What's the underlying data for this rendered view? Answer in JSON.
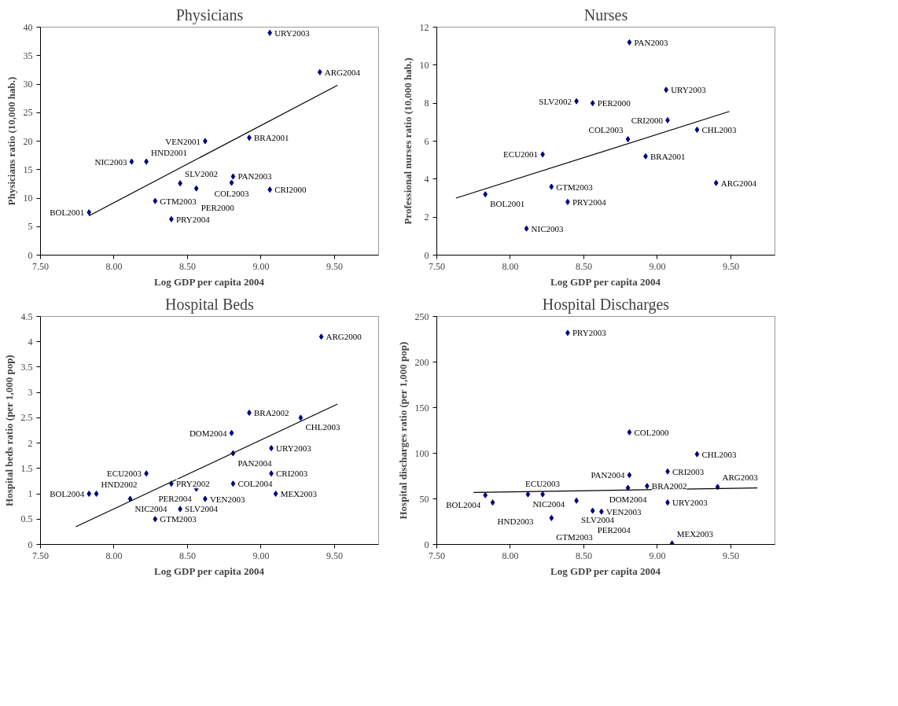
{
  "chart_data": [
    {
      "type": "scatter",
      "title": "Physicians",
      "xlabel": "Log GDP per capita 2004",
      "ylabel": "Physicians ratio (10,000 hab.)",
      "xlim": [
        7.5,
        9.8
      ],
      "xticks": [
        {
          "value": 7.5,
          "label": "7.50"
        },
        {
          "value": 8.0,
          "label": "8.00"
        },
        {
          "value": 8.5,
          "label": "8.50"
        },
        {
          "value": 9.0,
          "label": "9.00"
        },
        {
          "value": 9.5,
          "label": "9.50"
        }
      ],
      "ylim": [
        0,
        40
      ],
      "yticks": [
        0,
        5,
        10,
        15,
        20,
        25,
        30,
        35,
        40
      ],
      "series": [
        {
          "marker": "diamond",
          "color": "#000080",
          "x": [
            9.06,
            9.4,
            8.62,
            8.92,
            8.12,
            8.22,
            8.81,
            8.45,
            8.8,
            8.56,
            9.06,
            8.28,
            7.83,
            8.39
          ],
          "values": [
            39.0,
            32.1,
            20.0,
            20.6,
            16.4,
            16.4,
            13.8,
            12.6,
            12.7,
            11.7,
            11.5,
            9.5,
            7.5,
            6.3
          ]
        },
        {
          "type": "line",
          "color": "#000000",
          "x": [
            7.83,
            9.52
          ],
          "values": [
            6.9,
            29.8
          ]
        }
      ],
      "annotations": [
        {
          "text": "URY2003",
          "x": 9.06,
          "y": 39.0
        },
        {
          "text": "ARG2004",
          "x": 9.4,
          "y": 32.1
        },
        {
          "text": "VEN2001",
          "x": 8.62,
          "y": 20.0
        },
        {
          "text": "BRA2001",
          "x": 8.92,
          "y": 20.6
        },
        {
          "text": "NIC2003",
          "x": 8.12,
          "y": 16.4
        },
        {
          "text": "HND2001",
          "x": 8.22,
          "y": 16.4
        },
        {
          "text": "PAN2003",
          "x": 8.81,
          "y": 13.8
        },
        {
          "text": "SLV2002",
          "x": 8.45,
          "y": 12.6
        },
        {
          "text": "COL2003",
          "x": 8.8,
          "y": 12.7
        },
        {
          "text": "PER2000",
          "x": 8.56,
          "y": 11.7
        },
        {
          "text": "CRI2000",
          "x": 9.06,
          "y": 11.5
        },
        {
          "text": "GTM2003",
          "x": 8.28,
          "y": 9.5
        },
        {
          "text": "BOL2001",
          "x": 7.83,
          "y": 7.5
        },
        {
          "text": "PRY2004",
          "x": 8.39,
          "y": 6.3
        }
      ]
    },
    {
      "type": "scatter",
      "title": "Nurses",
      "xlabel": "Log GDP per capita 2004",
      "ylabel": "Professional nurses ratio (10,000 hab.)",
      "xlim": [
        7.5,
        9.8
      ],
      "xticks": [
        {
          "value": 7.5,
          "label": "7.50"
        },
        {
          "value": 8.0,
          "label": "8.00"
        },
        {
          "value": 8.5,
          "label": "8.50"
        },
        {
          "value": 9.0,
          "label": "9.00"
        },
        {
          "value": 9.5,
          "label": "9.50"
        }
      ],
      "ylim": [
        0,
        12
      ],
      "yticks": [
        0,
        2,
        4,
        6,
        8,
        10,
        12
      ],
      "series": [
        {
          "marker": "diamond",
          "color": "#000080",
          "x": [
            8.81,
            9.06,
            8.45,
            8.56,
            9.07,
            9.27,
            8.8,
            8.22,
            8.92,
            9.4,
            8.28,
            7.83,
            8.39,
            8.11
          ],
          "values": [
            11.2,
            8.7,
            8.1,
            8.0,
            7.1,
            6.6,
            6.1,
            5.3,
            5.2,
            3.8,
            3.6,
            3.2,
            2.8,
            1.4
          ]
        },
        {
          "type": "line",
          "color": "#000000",
          "x": [
            7.63,
            9.49
          ],
          "values": [
            3.0,
            7.56
          ]
        }
      ],
      "annotations": [
        {
          "text": "PAN2003",
          "x": 8.81,
          "y": 11.2
        },
        {
          "text": "URY2003",
          "x": 9.06,
          "y": 8.7
        },
        {
          "text": "SLV2002",
          "x": 8.45,
          "y": 8.1
        },
        {
          "text": "PER2000",
          "x": 8.56,
          "y": 8.0
        },
        {
          "text": "CRI2000",
          "x": 9.07,
          "y": 7.1
        },
        {
          "text": "CHL2003",
          "x": 9.27,
          "y": 6.6
        },
        {
          "text": "COL2003",
          "x": 8.8,
          "y": 6.1
        },
        {
          "text": "ECU2001",
          "x": 8.22,
          "y": 5.3
        },
        {
          "text": "BRA2001",
          "x": 8.92,
          "y": 5.2
        },
        {
          "text": "ARG2004",
          "x": 9.4,
          "y": 3.8
        },
        {
          "text": "GTM2003",
          "x": 8.28,
          "y": 3.6
        },
        {
          "text": "BOL2001",
          "x": 7.83,
          "y": 3.2
        },
        {
          "text": "PRY2004",
          "x": 8.39,
          "y": 2.8
        },
        {
          "text": "NIC2003",
          "x": 8.11,
          "y": 1.4
        }
      ]
    },
    {
      "type": "scatter",
      "title": "Hospital Beds",
      "xlabel": "Log GDP per capita 2004",
      "ylabel": "Hospital beds ratio (per 1,000 pop)",
      "xlim": [
        7.5,
        9.8
      ],
      "xticks": [
        {
          "value": 7.5,
          "label": "7.50"
        },
        {
          "value": 8.0,
          "label": "8.00"
        },
        {
          "value": 8.5,
          "label": "8.50"
        },
        {
          "value": 9.0,
          "label": "9.00"
        },
        {
          "value": 9.5,
          "label": "9.50"
        }
      ],
      "ylim": [
        0,
        4.5
      ],
      "yticks": [
        0,
        0.5,
        1,
        1.5,
        2,
        2.5,
        3,
        3.5,
        4,
        4.5
      ],
      "series": [
        {
          "marker": "diamond",
          "color": "#000080",
          "x": [
            9.41,
            8.92,
            9.27,
            8.8,
            9.07,
            8.81,
            8.22,
            9.07,
            8.39,
            8.81,
            8.56,
            7.83,
            7.88,
            9.1,
            8.11,
            8.62,
            8.45,
            8.28
          ],
          "values": [
            4.1,
            2.6,
            2.5,
            2.2,
            1.9,
            1.8,
            1.4,
            1.4,
            1.2,
            1.2,
            1.1,
            1.0,
            1.0,
            1.0,
            0.9,
            0.9,
            0.7,
            0.5
          ]
        },
        {
          "type": "line",
          "color": "#000000",
          "x": [
            7.74,
            9.52
          ],
          "values": [
            0.35,
            2.77
          ]
        }
      ],
      "annotations": [
        {
          "text": "ARG2000",
          "x": 9.41,
          "y": 4.1
        },
        {
          "text": "BRA2002",
          "x": 8.92,
          "y": 2.6
        },
        {
          "text": "CHL2003",
          "x": 9.27,
          "y": 2.5
        },
        {
          "text": "DOM2004",
          "x": 8.8,
          "y": 2.2
        },
        {
          "text": "URY2003",
          "x": 9.07,
          "y": 1.9
        },
        {
          "text": "PAN2004",
          "x": 8.81,
          "y": 1.8
        },
        {
          "text": "ECU2003",
          "x": 8.22,
          "y": 1.4
        },
        {
          "text": "CRI2003",
          "x": 9.07,
          "y": 1.4
        },
        {
          "text": "PRY2002",
          "x": 8.39,
          "y": 1.2
        },
        {
          "text": "COL2004",
          "x": 8.81,
          "y": 1.2
        },
        {
          "text": "PER2004",
          "x": 8.56,
          "y": 1.1
        },
        {
          "text": "BOL2004",
          "x": 7.83,
          "y": 1.0
        },
        {
          "text": "HND2002",
          "x": 7.88,
          "y": 1.0
        },
        {
          "text": "MEX2003",
          "x": 9.1,
          "y": 1.0
        },
        {
          "text": "NIC2004",
          "x": 8.11,
          "y": 0.9
        },
        {
          "text": "VEN2003",
          "x": 8.62,
          "y": 0.9
        },
        {
          "text": "SLV2004",
          "x": 8.45,
          "y": 0.7
        },
        {
          "text": "GTM2003",
          "x": 8.28,
          "y": 0.5
        }
      ]
    },
    {
      "type": "scatter",
      "title": "Hospital Discharges",
      "xlabel": "Log GDP per capita 2004",
      "ylabel": "Hospital discharges ratio (per 1,000 pop)",
      "xlim": [
        7.5,
        9.8
      ],
      "xticks": [
        {
          "value": 7.5,
          "label": "7.50"
        },
        {
          "value": 8.0,
          "label": "8.00"
        },
        {
          "value": 8.5,
          "label": "8.50"
        },
        {
          "value": 9.0,
          "label": "9.00"
        },
        {
          "value": 9.5,
          "label": "9.50"
        }
      ],
      "ylim": [
        0,
        250
      ],
      "yticks": [
        0,
        50,
        100,
        150,
        200,
        250
      ],
      "series": [
        {
          "marker": "diamond",
          "color": "#000080",
          "x": [
            8.39,
            8.81,
            9.27,
            9.07,
            8.81,
            8.93,
            8.8,
            9.41,
            7.83,
            8.12,
            8.22,
            8.45,
            7.88,
            9.07,
            8.56,
            8.62,
            8.28,
            9.1
          ],
          "values": [
            232,
            123,
            99,
            80,
            76,
            64,
            62,
            63,
            54,
            55,
            55,
            48,
            46,
            46,
            37,
            36,
            29,
            1
          ]
        },
        {
          "type": "line",
          "color": "#000000",
          "x": [
            7.75,
            9.68
          ],
          "values": [
            57,
            62
          ]
        }
      ],
      "annotations": [
        {
          "text": "PRY2003",
          "x": 8.39,
          "y": 232
        },
        {
          "text": "COL2000",
          "x": 8.81,
          "y": 123
        },
        {
          "text": "CHL2003",
          "x": 9.27,
          "y": 99
        },
        {
          "text": "CRI2003",
          "x": 9.07,
          "y": 80
        },
        {
          "text": "PAN2004",
          "x": 8.81,
          "y": 76
        },
        {
          "text": "BRA2002",
          "x": 8.93,
          "y": 64
        },
        {
          "text": "DOM2004",
          "x": 8.8,
          "y": 62
        },
        {
          "text": "ARG2003",
          "x": 9.41,
          "y": 63
        },
        {
          "text": "BOL2004",
          "x": 7.83,
          "y": 54
        },
        {
          "text": "NIC2004",
          "x": 8.12,
          "y": 55
        },
        {
          "text": "ECU2003",
          "x": 8.22,
          "y": 55
        },
        {
          "text": "SLV2004",
          "x": 8.45,
          "y": 48
        },
        {
          "text": "HND2003",
          "x": 7.88,
          "y": 46
        },
        {
          "text": "URY2003",
          "x": 9.07,
          "y": 46
        },
        {
          "text": "PER2004",
          "x": 8.56,
          "y": 37
        },
        {
          "text": "VEN2003",
          "x": 8.62,
          "y": 36
        },
        {
          "text": "GTM2003",
          "x": 8.28,
          "y": 29
        },
        {
          "text": "MEX2003",
          "x": 9.1,
          "y": 1
        }
      ]
    }
  ]
}
